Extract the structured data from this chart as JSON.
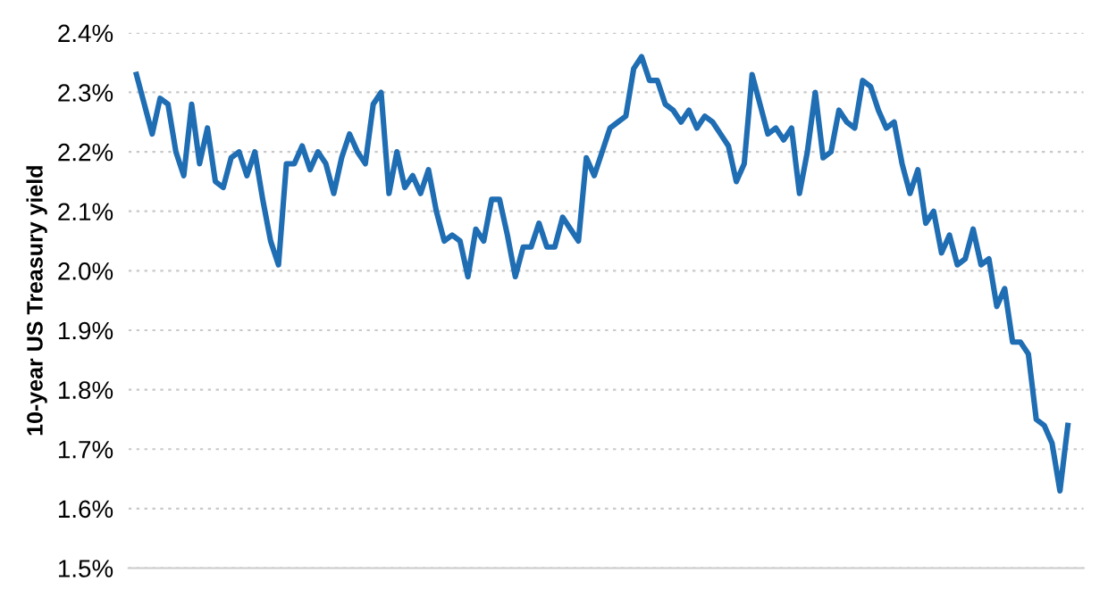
{
  "chart_data": {
    "type": "line",
    "ylabel": "10-year US Treasury yield",
    "categories": [
      null,
      null,
      null,
      null,
      null,
      null,
      null,
      null,
      null,
      null,
      null,
      null,
      null,
      null,
      null,
      null,
      null,
      null,
      null,
      null,
      null,
      null,
      null,
      null,
      null,
      null,
      null,
      null,
      null,
      null,
      null,
      null,
      null,
      null,
      null,
      null,
      null,
      null,
      null,
      null,
      null,
      null,
      null,
      null,
      null,
      null,
      null,
      null,
      null,
      null,
      null,
      null,
      null,
      null,
      null,
      null,
      null,
      null,
      null,
      null,
      null,
      null,
      null,
      null,
      null,
      null,
      null,
      null,
      null,
      null,
      null,
      null,
      null,
      null,
      null,
      null,
      null,
      null,
      null,
      null,
      null,
      null,
      null,
      null,
      null,
      null,
      null,
      null,
      null,
      null,
      null,
      null,
      null,
      null,
      null,
      null,
      null,
      null,
      null,
      null,
      null,
      null,
      null,
      null,
      null,
      null,
      null,
      null,
      null,
      null,
      null,
      null,
      null,
      null,
      null,
      null,
      null,
      null,
      null
    ],
    "series": [
      {
        "color": "#1f6db3",
        "values": [
          2.33,
          2.28,
          2.23,
          2.29,
          2.28,
          2.2,
          2.16,
          2.28,
          2.18,
          2.24,
          2.15,
          2.14,
          2.19,
          2.2,
          2.16,
          2.2,
          2.12,
          2.05,
          2.01,
          2.18,
          2.18,
          2.21,
          2.17,
          2.2,
          2.18,
          2.13,
          2.19,
          2.23,
          2.2,
          2.18,
          2.28,
          2.3,
          2.13,
          2.2,
          2.14,
          2.16,
          2.13,
          2.17,
          2.1,
          2.05,
          2.06,
          2.05,
          1.99,
          2.07,
          2.05,
          2.12,
          2.12,
          2.06,
          1.99,
          2.04,
          2.04,
          2.08,
          2.04,
          2.04,
          2.09,
          2.07,
          2.05,
          2.19,
          2.16,
          2.2,
          2.24,
          2.25,
          2.26,
          2.34,
          2.36,
          2.32,
          2.32,
          2.28,
          2.27,
          2.25,
          2.27,
          2.24,
          2.26,
          2.25,
          2.23,
          2.21,
          2.15,
          2.18,
          2.33,
          2.28,
          2.23,
          2.24,
          2.22,
          2.24,
          2.13,
          2.2,
          2.3,
          2.19,
          2.2,
          2.27,
          2.25,
          2.24,
          2.32,
          2.31,
          2.27,
          2.24,
          2.25,
          2.18,
          2.13,
          2.17,
          2.08,
          2.1,
          2.03,
          2.06,
          2.01,
          2.02,
          2.07,
          2.01,
          2.02,
          1.94,
          1.97,
          1.88,
          1.88,
          1.86,
          1.75,
          1.74,
          1.71,
          1.63,
          1.74
        ]
      }
    ],
    "ylim": [
      1.5,
      2.4
    ],
    "yticks": [
      {
        "value": 1.5,
        "label": "1.5%"
      },
      {
        "value": 1.6,
        "label": "1.6%"
      },
      {
        "value": 1.7,
        "label": "1.7%"
      },
      {
        "value": 1.8,
        "label": "1.8%"
      },
      {
        "value": 1.9,
        "label": "1.9%"
      },
      {
        "value": 2.0,
        "label": "2.0%"
      },
      {
        "value": 2.1,
        "label": "2.1%"
      },
      {
        "value": 2.2,
        "label": "2.2%"
      },
      {
        "value": 2.3,
        "label": "2.3%"
      },
      {
        "value": 2.4,
        "label": "2.4%"
      }
    ],
    "grid": "y",
    "line_style": "solid",
    "marker": "none"
  }
}
